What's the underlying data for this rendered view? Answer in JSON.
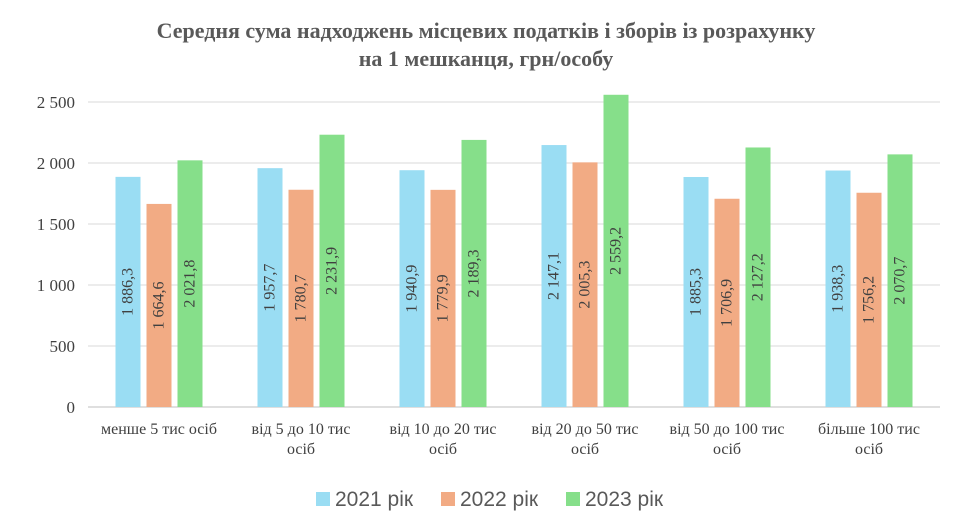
{
  "chart_data": {
    "type": "bar",
    "title_lines": [
      "Середня сума надходжень місцевих податків і зборів із розрахунку",
      "на 1 мешканця, грн/особу"
    ],
    "categories": [
      [
        "менше 5 тис осіб"
      ],
      [
        "від 5 до 10 тис",
        "осіб"
      ],
      [
        "від 10 до 20 тис",
        "осіб"
      ],
      [
        "від 20 до 50 тис",
        "осіб"
      ],
      [
        "від 50 до 100 тис",
        "осіб"
      ],
      [
        "більше 100 тис",
        "осіб"
      ]
    ],
    "series": [
      {
        "name": "2021 рік",
        "color": "#9ADDF3",
        "values": [
          1886.3,
          1957.7,
          1940.9,
          2147.1,
          1885.3,
          1938.3
        ],
        "labels": [
          "1 886,3",
          "1 957,7",
          "1 940,9",
          "2 147,1",
          "1 885,3",
          "1 938,3"
        ]
      },
      {
        "name": "2022 рік",
        "color": "#F2AB84",
        "values": [
          1664.6,
          1780.7,
          1779.9,
          2005.3,
          1706.9,
          1756.2
        ],
        "labels": [
          "1 664,6",
          "1 780,7",
          "1 779,9",
          "2 005,3",
          "1 706,9",
          "1 756,2"
        ]
      },
      {
        "name": "2023 рік",
        "color": "#86DF8A",
        "values": [
          2021.8,
          2231.9,
          2189.3,
          2559.2,
          2127.2,
          2070.7
        ],
        "labels": [
          "2 021,8",
          "2 231,9",
          "2 189,3",
          "2 559,2",
          "2 127,2",
          "2 070,7"
        ]
      }
    ],
    "ylim": [
      0,
      2500
    ],
    "yticks": [
      0,
      500,
      1000,
      1500,
      2000,
      2500
    ],
    "ytick_labels": [
      "0",
      "500",
      "1 000",
      "1 500",
      "2 000",
      "2 500"
    ],
    "grid": true,
    "legend_position": "bottom"
  }
}
